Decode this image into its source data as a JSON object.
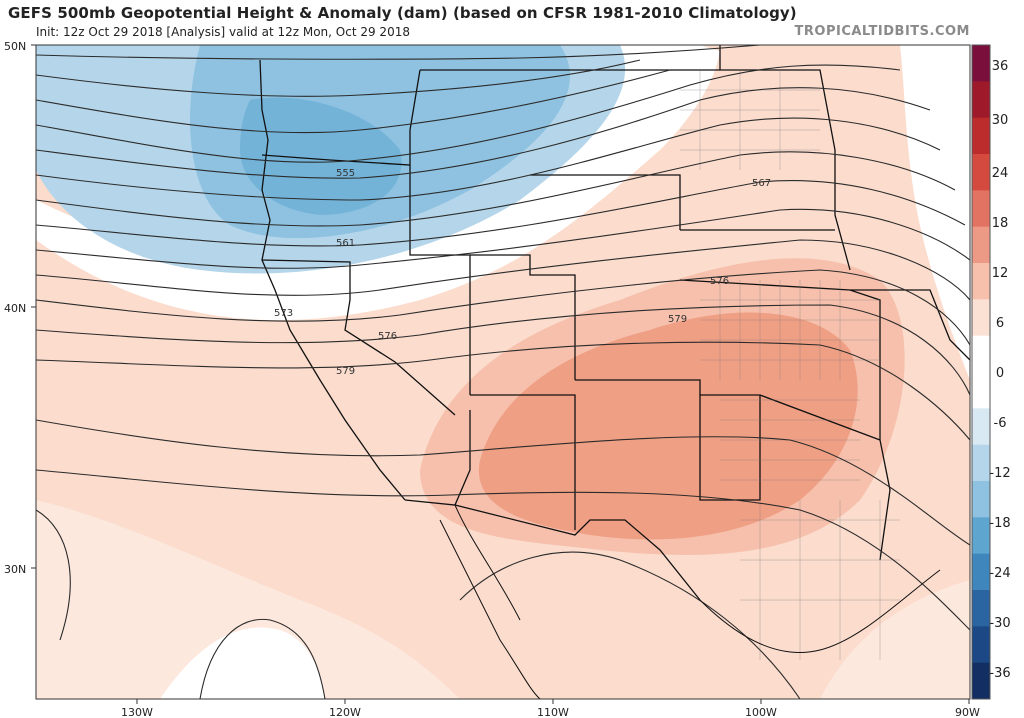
{
  "header": {
    "title": "GEFS 500mb Geopotential Height & Anomaly (dam) (based on CFSR 1981-2010 Climatology)",
    "subtitle": "Init: 12z Oct 29 2018  [Analysis]   valid at 12z Mon, Oct 29 2018",
    "brand": "TROPICALTIDBITS.COM"
  },
  "map": {
    "lat_labels": [
      "50N",
      "40N",
      "30N"
    ],
    "lon_labels": [
      "130W",
      "120W",
      "110W",
      "100W",
      "90W"
    ],
    "contour_labels": [
      "555",
      "561",
      "567",
      "573",
      "576",
      "576",
      "579",
      "579"
    ]
  },
  "colorbar": {
    "labels": [
      "36",
      "30",
      "24",
      "18",
      "12",
      "6",
      "0",
      "-6",
      "-12",
      "-18",
      "-24",
      "-30",
      "-36"
    ],
    "colors": [
      "#7a0f3c",
      "#9e1a2a",
      "#bd2c2c",
      "#d54a3e",
      "#e27262",
      "#ec9a85",
      "#f6c0ac",
      "#fbe0d4",
      "#ffffff",
      "#ffffff",
      "#d9e9f3",
      "#b5d6ea",
      "#8ec2e0",
      "#5ea5cf",
      "#3e86bb",
      "#2a65a2",
      "#1c4985",
      "#122e62"
    ]
  }
}
